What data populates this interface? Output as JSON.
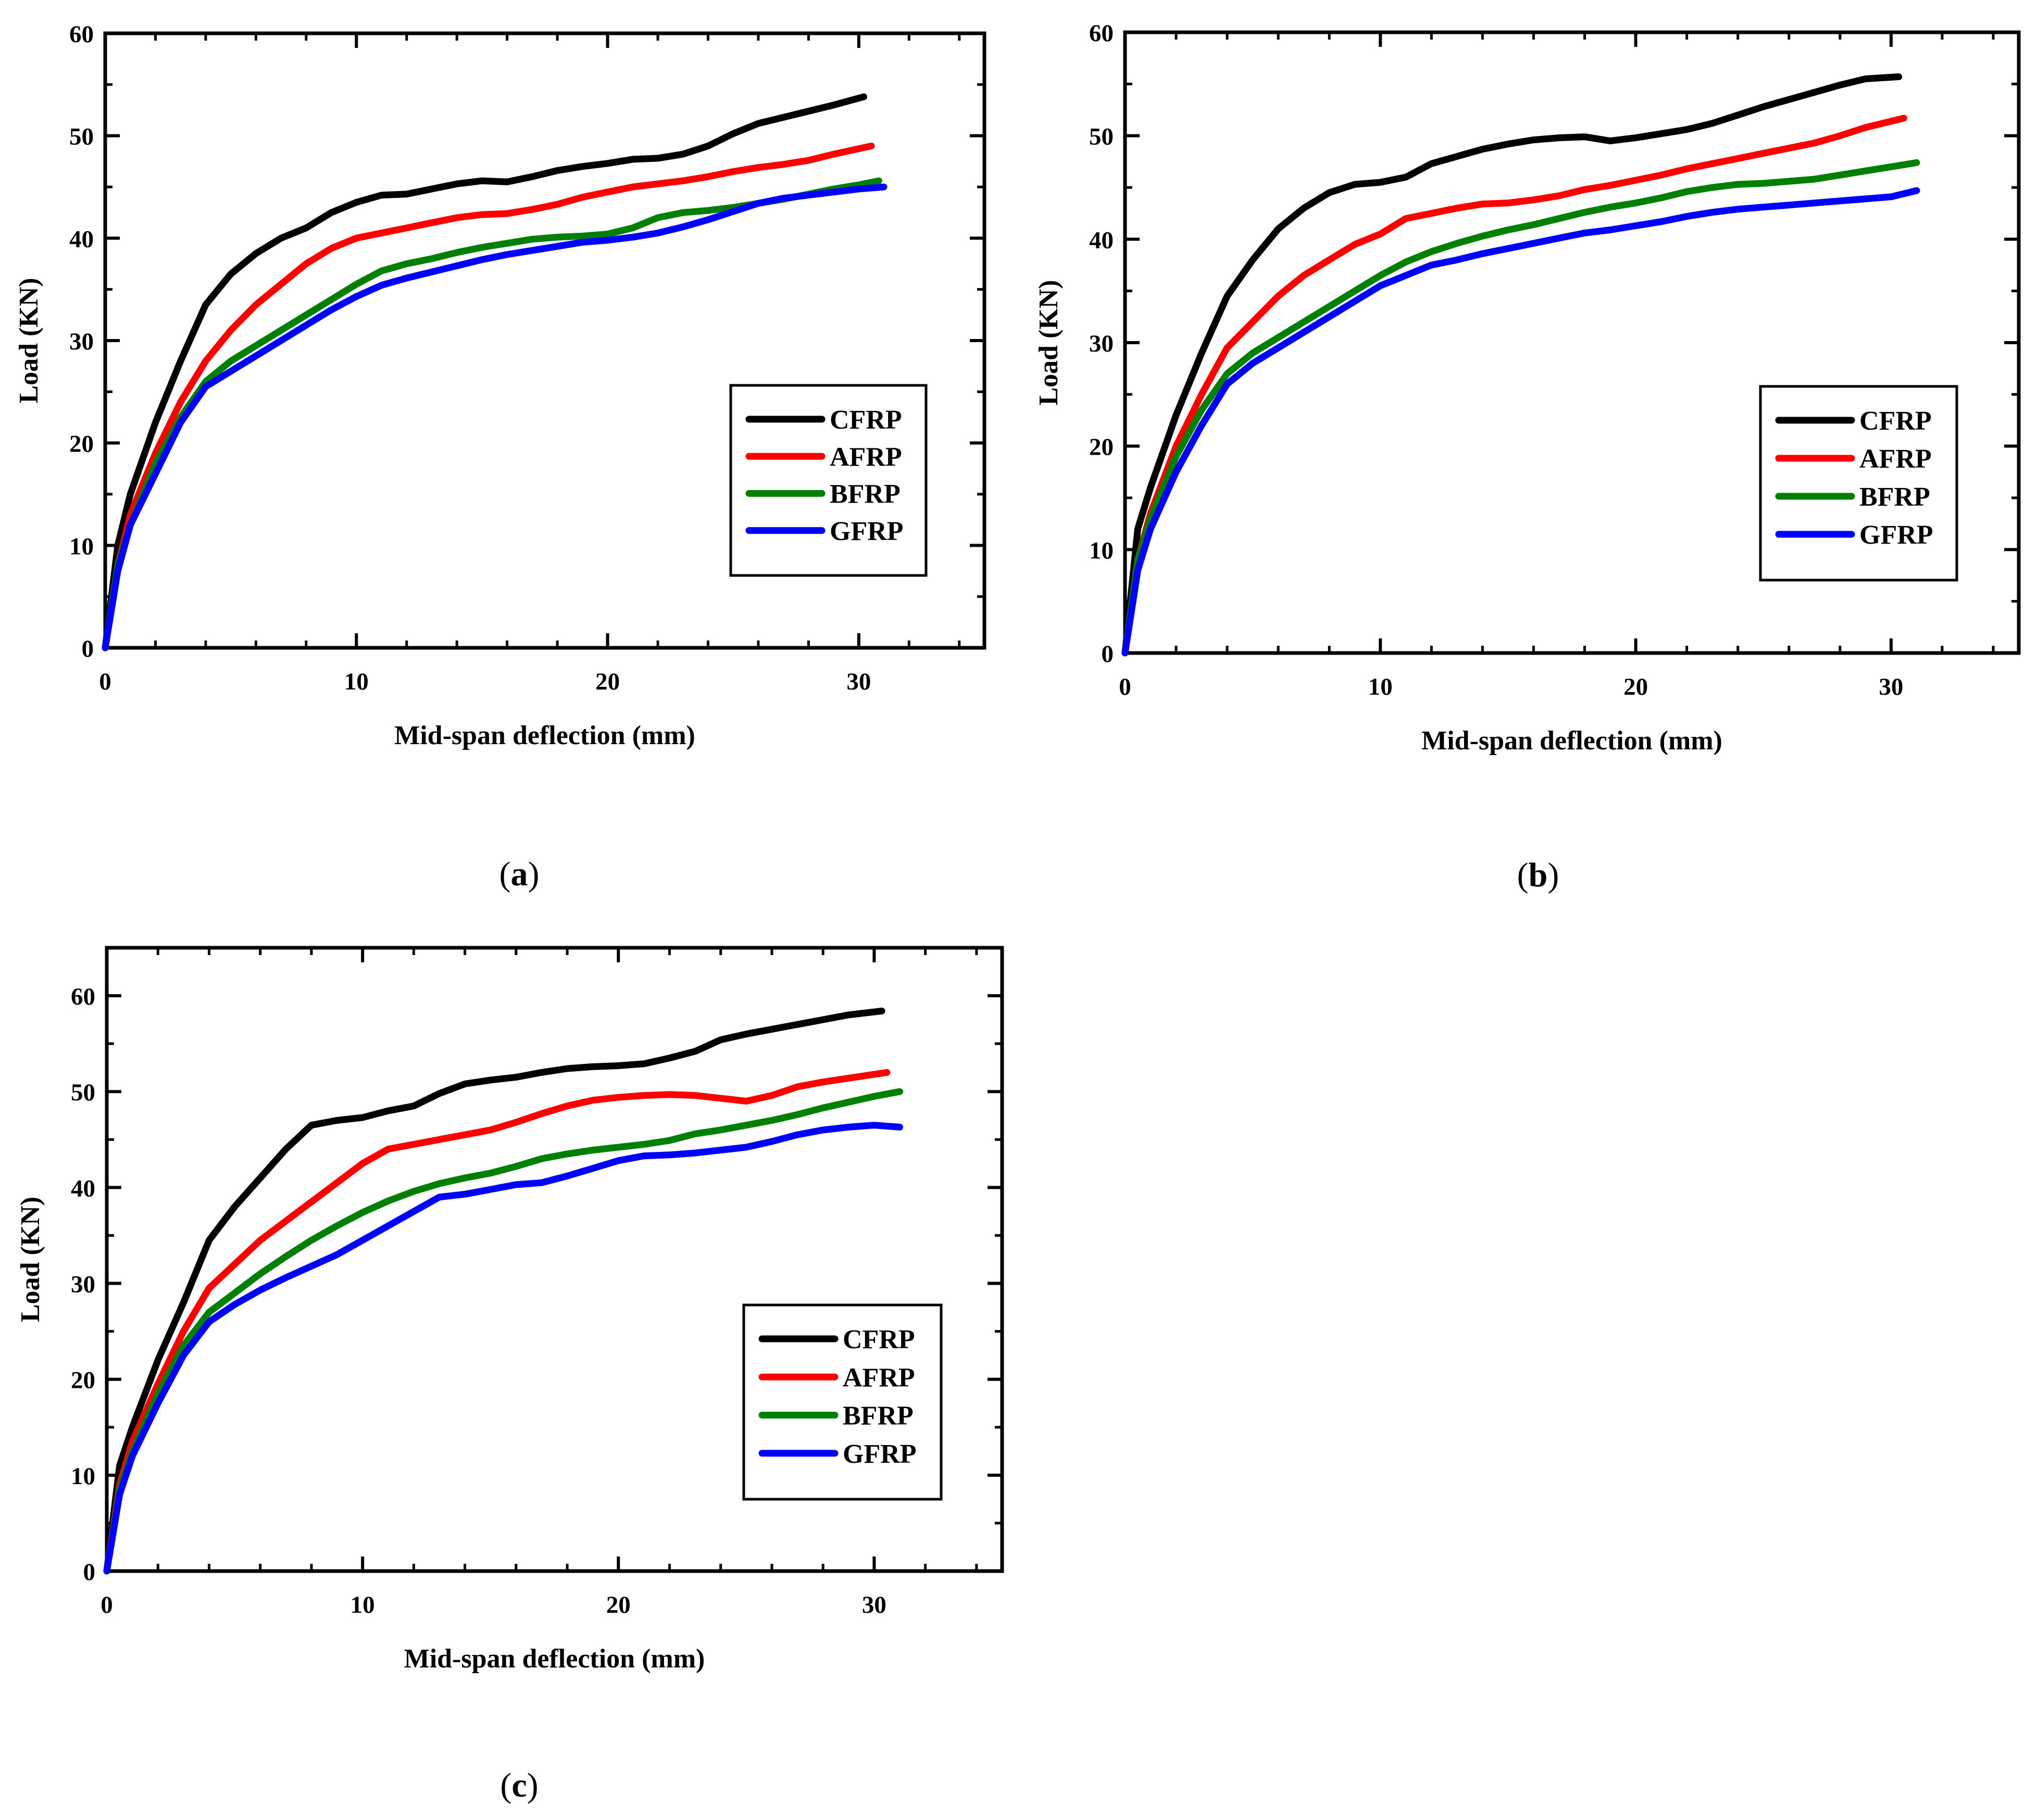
{
  "figure": {
    "panels": [
      "a",
      "b",
      "c"
    ]
  },
  "chart_data": [
    {
      "panel_label": "a",
      "type": "line",
      "title": "",
      "xlabel": "Mid-span deflection (mm)",
      "ylabel": "Load (KN)",
      "xlim": [
        0,
        35
      ],
      "ylim": [
        0,
        60
      ],
      "xticks": [
        0,
        10,
        20,
        30
      ],
      "yticks": [
        0,
        10,
        20,
        30,
        40,
        50,
        60
      ],
      "legend_position": "center-right",
      "series": [
        {
          "name": "CFRP",
          "color": "#000000",
          "x": [
            0,
            0.5,
            1,
            2,
            3,
            4,
            5,
            6,
            7,
            8,
            9,
            10,
            11,
            12,
            13,
            14,
            15,
            16,
            17,
            18,
            19,
            20,
            21,
            22,
            23,
            24,
            25,
            26,
            27,
            28,
            29,
            30.2
          ],
          "y": [
            0,
            10,
            15,
            22,
            28,
            33.5,
            36.5,
            38.5,
            40,
            41,
            42.5,
            43.5,
            44.2,
            44.3,
            44.8,
            45.3,
            45.6,
            45.5,
            46,
            46.6,
            47,
            47.3,
            47.7,
            47.8,
            48.2,
            49,
            50.2,
            51.2,
            51.8,
            52.4,
            53,
            53.8
          ]
        },
        {
          "name": "AFRP",
          "color": "#ff0000",
          "x": [
            0,
            0.5,
            1,
            2,
            3,
            4,
            5,
            6,
            7,
            8,
            9,
            10,
            11,
            12,
            13,
            14,
            15,
            16,
            17,
            18,
            19,
            20,
            21,
            22,
            23,
            24,
            25,
            26,
            27,
            28,
            29,
            30.5
          ],
          "y": [
            0,
            8,
            13,
            19,
            24,
            28,
            31,
            33.5,
            35.5,
            37.5,
            39,
            40,
            40.5,
            41,
            41.5,
            42,
            42.3,
            42.4,
            42.8,
            43.3,
            44,
            44.5,
            45,
            45.3,
            45.6,
            46,
            46.5,
            46.9,
            47.2,
            47.6,
            48.2,
            49
          ]
        },
        {
          "name": "BFRP",
          "color": "#008000",
          "x": [
            0,
            0.5,
            1,
            2,
            3,
            4,
            5,
            6,
            7,
            8,
            9,
            10,
            11,
            12,
            13,
            14,
            15,
            16,
            17,
            18,
            19,
            20,
            21,
            22,
            23,
            24,
            25,
            26,
            27,
            28,
            29,
            30,
            30.8
          ],
          "y": [
            0,
            8,
            12,
            18,
            22.5,
            26,
            28,
            29.5,
            31,
            32.5,
            34,
            35.5,
            36.8,
            37.5,
            38,
            38.6,
            39.1,
            39.5,
            39.9,
            40.1,
            40.2,
            40.4,
            41,
            42,
            42.5,
            42.7,
            43,
            43.4,
            43.8,
            44.3,
            44.8,
            45.2,
            45.6
          ]
        },
        {
          "name": "GFRP",
          "color": "#0000ff",
          "x": [
            0,
            0.5,
            1,
            2,
            3,
            4,
            5,
            6,
            7,
            8,
            9,
            10,
            11,
            12,
            13,
            14,
            15,
            16,
            17,
            18,
            19,
            20,
            21,
            22,
            23,
            24,
            25,
            26,
            27,
            28,
            29,
            30,
            31
          ],
          "y": [
            0,
            7.5,
            12,
            17,
            22,
            25.5,
            27,
            28.5,
            30,
            31.5,
            33,
            34.3,
            35.4,
            36.1,
            36.7,
            37.3,
            37.9,
            38.4,
            38.8,
            39.2,
            39.6,
            39.8,
            40.1,
            40.5,
            41.1,
            41.8,
            42.6,
            43.4,
            43.9,
            44.2,
            44.5,
            44.8,
            45
          ]
        }
      ]
    },
    {
      "panel_label": "b",
      "type": "line",
      "title": "",
      "xlabel": "Mid-span deflection (mm)",
      "ylabel": "Load (KN)",
      "xlim": [
        0,
        35
      ],
      "ylim": [
        0,
        60
      ],
      "xticks": [
        0,
        10,
        20,
        30
      ],
      "yticks": [
        0,
        10,
        20,
        30,
        40,
        50,
        60
      ],
      "legend_position": "center-right",
      "series": [
        {
          "name": "CFRP",
          "color": "#000000",
          "x": [
            0,
            0.5,
            1,
            2,
            3,
            4,
            5,
            6,
            7,
            8,
            9,
            10,
            11,
            12,
            13,
            14,
            15,
            16,
            17,
            18,
            19,
            20,
            21,
            22,
            23,
            24,
            25,
            26,
            27,
            28,
            29,
            30.3
          ],
          "y": [
            0,
            12,
            16,
            23,
            29,
            34.5,
            38,
            41,
            43,
            44.5,
            45.3,
            45.5,
            46,
            47.3,
            48,
            48.7,
            49.2,
            49.6,
            49.8,
            49.9,
            49.5,
            49.8,
            50.2,
            50.6,
            51.2,
            52,
            52.8,
            53.5,
            54.2,
            54.9,
            55.5,
            55.7
          ]
        },
        {
          "name": "AFRP",
          "color": "#ff0000",
          "x": [
            0,
            0.5,
            1,
            2,
            3,
            4,
            5,
            6,
            7,
            8,
            9,
            10,
            11,
            12,
            13,
            14,
            15,
            16,
            17,
            18,
            19,
            20,
            21,
            22,
            23,
            24,
            25,
            26,
            27,
            28,
            29,
            30.5
          ],
          "y": [
            0,
            9,
            13.5,
            20,
            25,
            29.5,
            32,
            34.5,
            36.5,
            38,
            39.5,
            40.5,
            42,
            42.5,
            43,
            43.4,
            43.5,
            43.8,
            44.2,
            44.8,
            45.2,
            45.7,
            46.2,
            46.8,
            47.3,
            47.8,
            48.3,
            48.8,
            49.3,
            50,
            50.8,
            51.7
          ]
        },
        {
          "name": "BFRP",
          "color": "#008000",
          "x": [
            0,
            0.5,
            1,
            2,
            3,
            4,
            5,
            6,
            7,
            8,
            9,
            10,
            11,
            12,
            13,
            14,
            15,
            16,
            17,
            18,
            19,
            20,
            21,
            22,
            23,
            24,
            25,
            26,
            27,
            28,
            29,
            30,
            31
          ],
          "y": [
            0,
            9,
            13,
            19,
            23.5,
            27,
            29,
            30.5,
            32,
            33.5,
            35,
            36.5,
            37.8,
            38.8,
            39.6,
            40.3,
            40.9,
            41.4,
            42,
            42.6,
            43.1,
            43.5,
            44,
            44.6,
            45,
            45.3,
            45.4,
            45.6,
            45.8,
            46.2,
            46.6,
            47,
            47.4
          ]
        },
        {
          "name": "GFRP",
          "color": "#0000ff",
          "x": [
            0,
            0.5,
            1,
            2,
            3,
            4,
            5,
            6,
            7,
            8,
            9,
            10,
            11,
            12,
            13,
            14,
            15,
            16,
            17,
            18,
            19,
            20,
            21,
            22,
            23,
            24,
            25,
            26,
            27,
            28,
            29,
            30,
            31
          ],
          "y": [
            0,
            8,
            12,
            17.5,
            22,
            26,
            28,
            29.5,
            31,
            32.5,
            34,
            35.5,
            36.5,
            37.5,
            38,
            38.6,
            39.1,
            39.6,
            40.1,
            40.6,
            40.9,
            41.3,
            41.7,
            42.2,
            42.6,
            42.9,
            43.1,
            43.3,
            43.5,
            43.7,
            43.9,
            44.1,
            44.7
          ]
        }
      ]
    },
    {
      "panel_label": "c",
      "type": "line",
      "title": "",
      "xlabel": "Mid-span deflection (mm)",
      "ylabel": "Load (KN)",
      "xlim": [
        0,
        35
      ],
      "ylim": [
        0,
        65
      ],
      "xticks": [
        0,
        10,
        20,
        30
      ],
      "yticks": [
        0,
        10,
        20,
        30,
        40,
        50,
        60
      ],
      "legend_position": "center-right",
      "series": [
        {
          "name": "CFRP",
          "color": "#000000",
          "x": [
            0,
            0.5,
            1,
            2,
            3,
            4,
            5,
            6,
            7,
            8,
            9,
            10,
            11,
            12,
            13,
            14,
            15,
            16,
            17,
            18,
            19,
            20,
            21,
            22,
            23,
            24,
            25,
            26,
            27,
            28,
            29,
            30.3
          ],
          "y": [
            0,
            11,
            15,
            22,
            28,
            34.5,
            38,
            41,
            44,
            46.5,
            47,
            47.3,
            48,
            48.5,
            49.8,
            50.8,
            51.2,
            51.5,
            52,
            52.4,
            52.6,
            52.7,
            52.9,
            53.5,
            54.2,
            55.4,
            56,
            56.5,
            57,
            57.5,
            58,
            58.4
          ]
        },
        {
          "name": "AFRP",
          "color": "#ff0000",
          "x": [
            0,
            0.5,
            1,
            2,
            3,
            4,
            5,
            6,
            7,
            8,
            9,
            10,
            11,
            12,
            13,
            14,
            15,
            16,
            17,
            18,
            19,
            20,
            21,
            22,
            23,
            24,
            25,
            26,
            27,
            28,
            29,
            30.5
          ],
          "y": [
            0,
            9,
            13.5,
            19.5,
            25,
            29.5,
            32,
            34.5,
            36.5,
            38.5,
            40.5,
            42.5,
            44,
            44.5,
            45,
            45.5,
            46,
            46.8,
            47.7,
            48.5,
            49.1,
            49.4,
            49.6,
            49.7,
            49.6,
            49.3,
            49,
            49.6,
            50.5,
            51,
            51.4,
            52
          ]
        },
        {
          "name": "BFRP",
          "color": "#008000",
          "x": [
            0,
            0.5,
            1,
            2,
            3,
            4,
            5,
            6,
            7,
            8,
            9,
            10,
            11,
            12,
            13,
            14,
            15,
            16,
            17,
            18,
            19,
            20,
            21,
            22,
            23,
            24,
            25,
            26,
            27,
            28,
            29,
            30,
            31
          ],
          "y": [
            0,
            8.5,
            12.5,
            18.5,
            23.5,
            27,
            29,
            31,
            32.8,
            34.5,
            36,
            37.4,
            38.6,
            39.6,
            40.4,
            41,
            41.5,
            42.2,
            43,
            43.5,
            43.9,
            44.2,
            44.5,
            44.9,
            45.6,
            46,
            46.5,
            47,
            47.6,
            48.3,
            48.9,
            49.5,
            50
          ]
        },
        {
          "name": "GFRP",
          "color": "#0000ff",
          "x": [
            0,
            0.5,
            1,
            2,
            3,
            4,
            5,
            6,
            7,
            8,
            9,
            10,
            11,
            12,
            13,
            14,
            15,
            16,
            17,
            18,
            19,
            20,
            21,
            22,
            23,
            24,
            25,
            26,
            27,
            28,
            29,
            30,
            31
          ],
          "y": [
            0,
            8,
            12,
            17.5,
            22.5,
            26,
            27.8,
            29.3,
            30.6,
            31.8,
            33,
            34.5,
            36,
            37.5,
            39,
            39.3,
            39.8,
            40.3,
            40.5,
            41.2,
            42,
            42.8,
            43.3,
            43.4,
            43.6,
            43.9,
            44.2,
            44.8,
            45.5,
            46,
            46.3,
            46.5,
            46.3
          ]
        }
      ]
    }
  ]
}
